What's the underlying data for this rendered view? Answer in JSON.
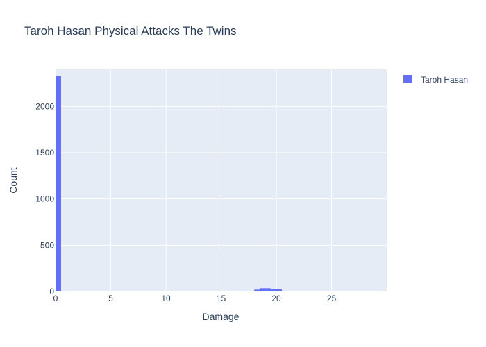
{
  "chart_data": {
    "type": "bar",
    "title": "Taroh Hasan Physical Attacks The Twins",
    "xlabel": "Damage",
    "ylabel": "Count",
    "xlim": [
      0,
      30
    ],
    "ylim": [
      0,
      2400
    ],
    "x_ticks": [
      0,
      5,
      10,
      15,
      20,
      25
    ],
    "y_ticks": [
      0,
      500,
      1000,
      1500,
      2000
    ],
    "bin_width": 0.5,
    "grid": true,
    "legend_position": "top-right",
    "series": [
      {
        "name": "Taroh Hasan",
        "color": "#636efa",
        "bins": [
          {
            "x0": 0,
            "x1": 0.5,
            "count": 2330
          },
          {
            "x0": 18,
            "x1": 18.5,
            "count": 20
          },
          {
            "x0": 18.5,
            "x1": 19,
            "count": 35
          },
          {
            "x0": 19,
            "x1": 19.5,
            "count": 35
          },
          {
            "x0": 19.5,
            "x1": 20,
            "count": 30
          },
          {
            "x0": 20,
            "x1": 20.5,
            "count": 30
          }
        ]
      }
    ]
  }
}
